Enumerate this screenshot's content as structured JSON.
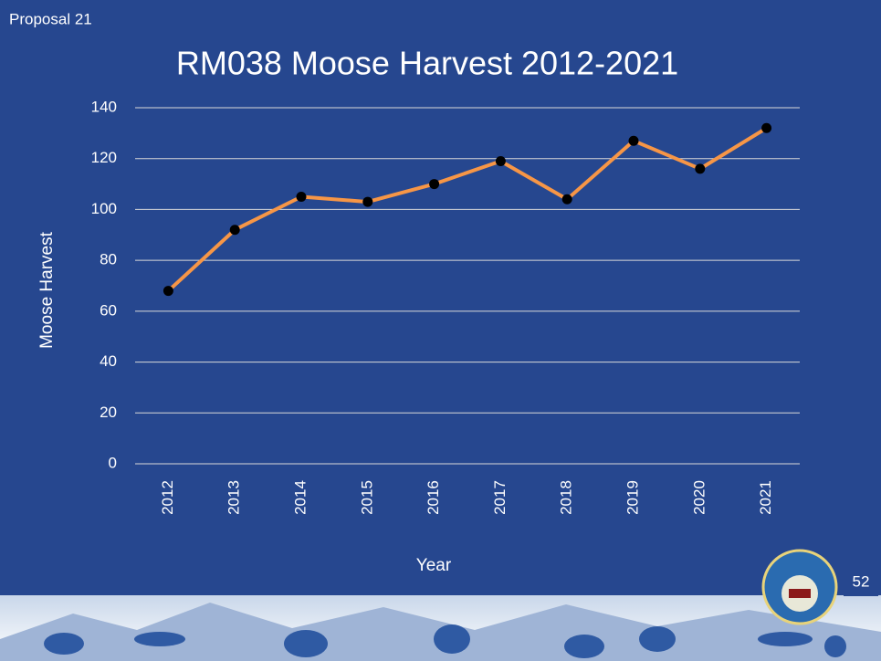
{
  "slide": {
    "label": "Proposal 21",
    "page_number": "52"
  },
  "chart_data": {
    "type": "line",
    "title": "RM038 Moose Harvest 2012-2021",
    "x_label": "Year",
    "y_label": "Moose Harvest",
    "categories": [
      "2012",
      "2013",
      "2014",
      "2015",
      "2016",
      "2017",
      "2018",
      "2019",
      "2020",
      "2021"
    ],
    "series": [
      {
        "name": "Moose Harvest",
        "color": "#f79646",
        "marker_color": "#000000",
        "values": [
          68,
          92,
          105,
          103,
          110,
          119,
          104,
          127,
          116,
          132
        ]
      }
    ],
    "ylim": [
      0,
      140
    ],
    "yticks": [
      0,
      20,
      40,
      60,
      80,
      100,
      120,
      140
    ],
    "grid": true
  }
}
